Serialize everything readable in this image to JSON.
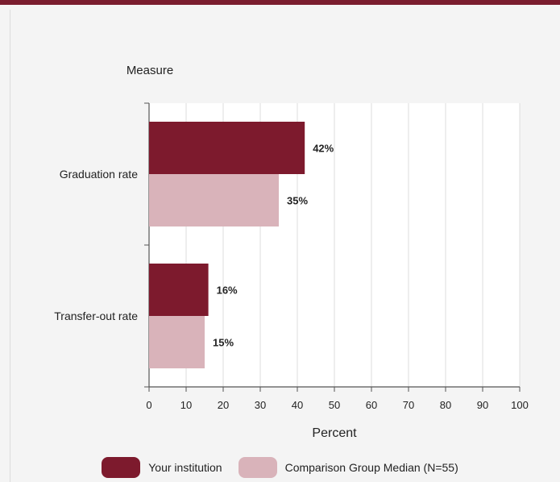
{
  "chart_data": {
    "type": "bar",
    "orientation": "horizontal",
    "title": "",
    "ylabel": "Measure",
    "xlabel": "Percent",
    "categories": [
      "Graduation rate",
      "Transfer-out rate"
    ],
    "series": [
      {
        "name": "Your institution",
        "values": [
          42,
          16
        ],
        "color": "#7d1a2d"
      },
      {
        "name": "Comparison Group Median (N=55)",
        "values": [
          35,
          15
        ],
        "color": "#d9b3ba"
      }
    ],
    "data_labels": [
      [
        "42%",
        "35%"
      ],
      [
        "16%",
        "15%"
      ]
    ],
    "xlim": [
      0,
      100
    ],
    "xticks": [
      0,
      10,
      20,
      30,
      40,
      50,
      60,
      70,
      80,
      90,
      100
    ],
    "grid": "vertical",
    "legend_position": "bottom"
  },
  "colors": {
    "accent": "#7a1d2e",
    "grid": "#dddddd"
  }
}
